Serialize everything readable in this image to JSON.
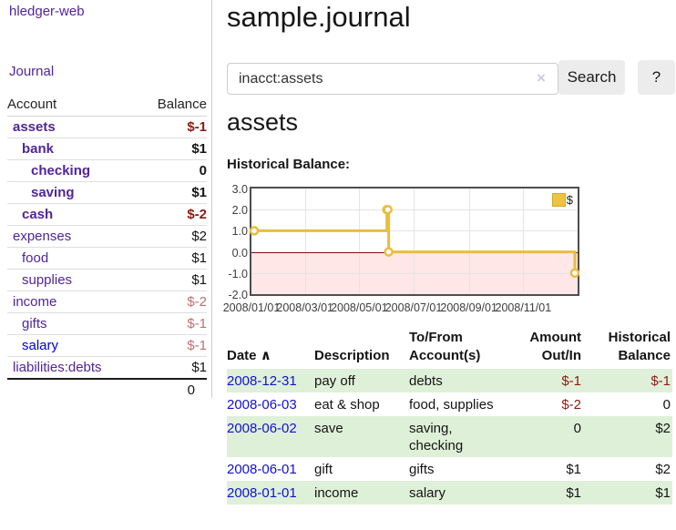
{
  "app": {
    "brand": "hledger-web",
    "nav_journal": "Journal"
  },
  "sidebar": {
    "headers": {
      "account": "Account",
      "balance": "Balance"
    },
    "accounts": [
      {
        "name": "assets",
        "level": 1,
        "bold": true,
        "balance": "$-1"
      },
      {
        "name": "bank",
        "level": 2,
        "bold": true,
        "balance": "$1"
      },
      {
        "name": "checking",
        "level": 3,
        "bold": true,
        "balance": "0"
      },
      {
        "name": "saving",
        "level": 3,
        "bold": true,
        "balance": "$1"
      },
      {
        "name": "cash",
        "level": 2,
        "bold": true,
        "balance": "$-2"
      },
      {
        "name": "expenses",
        "level": 1,
        "bold": false,
        "balance": "$2"
      },
      {
        "name": "food",
        "level": 2,
        "bold": false,
        "balance": "$1"
      },
      {
        "name": "supplies",
        "level": 2,
        "bold": false,
        "balance": "$1"
      },
      {
        "name": "income",
        "level": 1,
        "bold": false,
        "balance": "$-2"
      },
      {
        "name": "gifts",
        "level": 2,
        "bold": false,
        "balance": "$-1"
      },
      {
        "name": "salary",
        "level": 2,
        "bold": false,
        "balance": "$-1",
        "blue": true
      },
      {
        "name": "liabilities:debts",
        "level": 1,
        "bold": false,
        "balance": "$1"
      }
    ],
    "total": "0"
  },
  "header": {
    "title": "sample.journal"
  },
  "search": {
    "value": "inacct:assets",
    "clear_icon": "×",
    "button": "Search",
    "help_button": "?"
  },
  "register": {
    "heading": "assets",
    "chart_label": "Historical Balance:"
  },
  "chart_data": {
    "type": "line",
    "subtype": "step-after",
    "title": "Historical Balance",
    "legend": [
      {
        "label": "$",
        "color": "#eec33f"
      }
    ],
    "legend_position": "top-right",
    "grid": true,
    "x_range": [
      "2008-01-01",
      "2009-01-01"
    ],
    "x_tick_labels": [
      "2008/01/01",
      "2008/03/01",
      "2008/05/01",
      "2008/07/01",
      "2008/09/01",
      "2008/11/01"
    ],
    "y_tick_labels": [
      "3.0",
      "2.0",
      "1.0",
      "0.0",
      "-1.0",
      "-2.0"
    ],
    "ylim": [
      -2.0,
      3.0
    ],
    "zero_line_color": "#7d0f0f",
    "negative_region_fill": "pink",
    "series": [
      {
        "name": "$",
        "color": "#e9bd3e",
        "points": [
          [
            "2008-01-01",
            1
          ],
          [
            "2008-06-01",
            2
          ],
          [
            "2008-06-02",
            2
          ],
          [
            "2008-06-03",
            0
          ],
          [
            "2008-12-31",
            -1
          ]
        ]
      }
    ]
  },
  "table": {
    "headers": {
      "date": "Date",
      "description": "Description",
      "tofrom_l1": "To/From",
      "tofrom_l2": "Account(s)",
      "amount_l1": "Amount",
      "amount_l2": "Out/In",
      "balance_l1": "Historical",
      "balance_l2": "Balance"
    },
    "sort_icon": "∧",
    "rows": [
      {
        "date": "2008-12-31",
        "description": "pay off",
        "accounts": "debts",
        "amount": "$-1",
        "balance": "$-1"
      },
      {
        "date": "2008-06-03",
        "description": "eat & shop",
        "accounts": "food, supplies",
        "amount": "$-2",
        "balance": "0"
      },
      {
        "date": "2008-06-02",
        "description": "save",
        "accounts": "saving, checking",
        "amount": "0",
        "balance": "$2"
      },
      {
        "date": "2008-06-01",
        "description": "gift",
        "accounts": "gifts",
        "amount": "$1",
        "balance": "$2"
      },
      {
        "date": "2008-01-01",
        "description": "income",
        "accounts": "salary",
        "amount": "$1",
        "balance": "$1"
      }
    ]
  },
  "colors": {
    "link_purple": "#51249b",
    "link_blue": "#0000e0",
    "date_blue": "#1212cf",
    "negative_dark": "#8c1a12",
    "negative_soft": "#bb7171",
    "row_stripe_green": "#dff0d8",
    "series_gold": "#e9bd3e"
  }
}
